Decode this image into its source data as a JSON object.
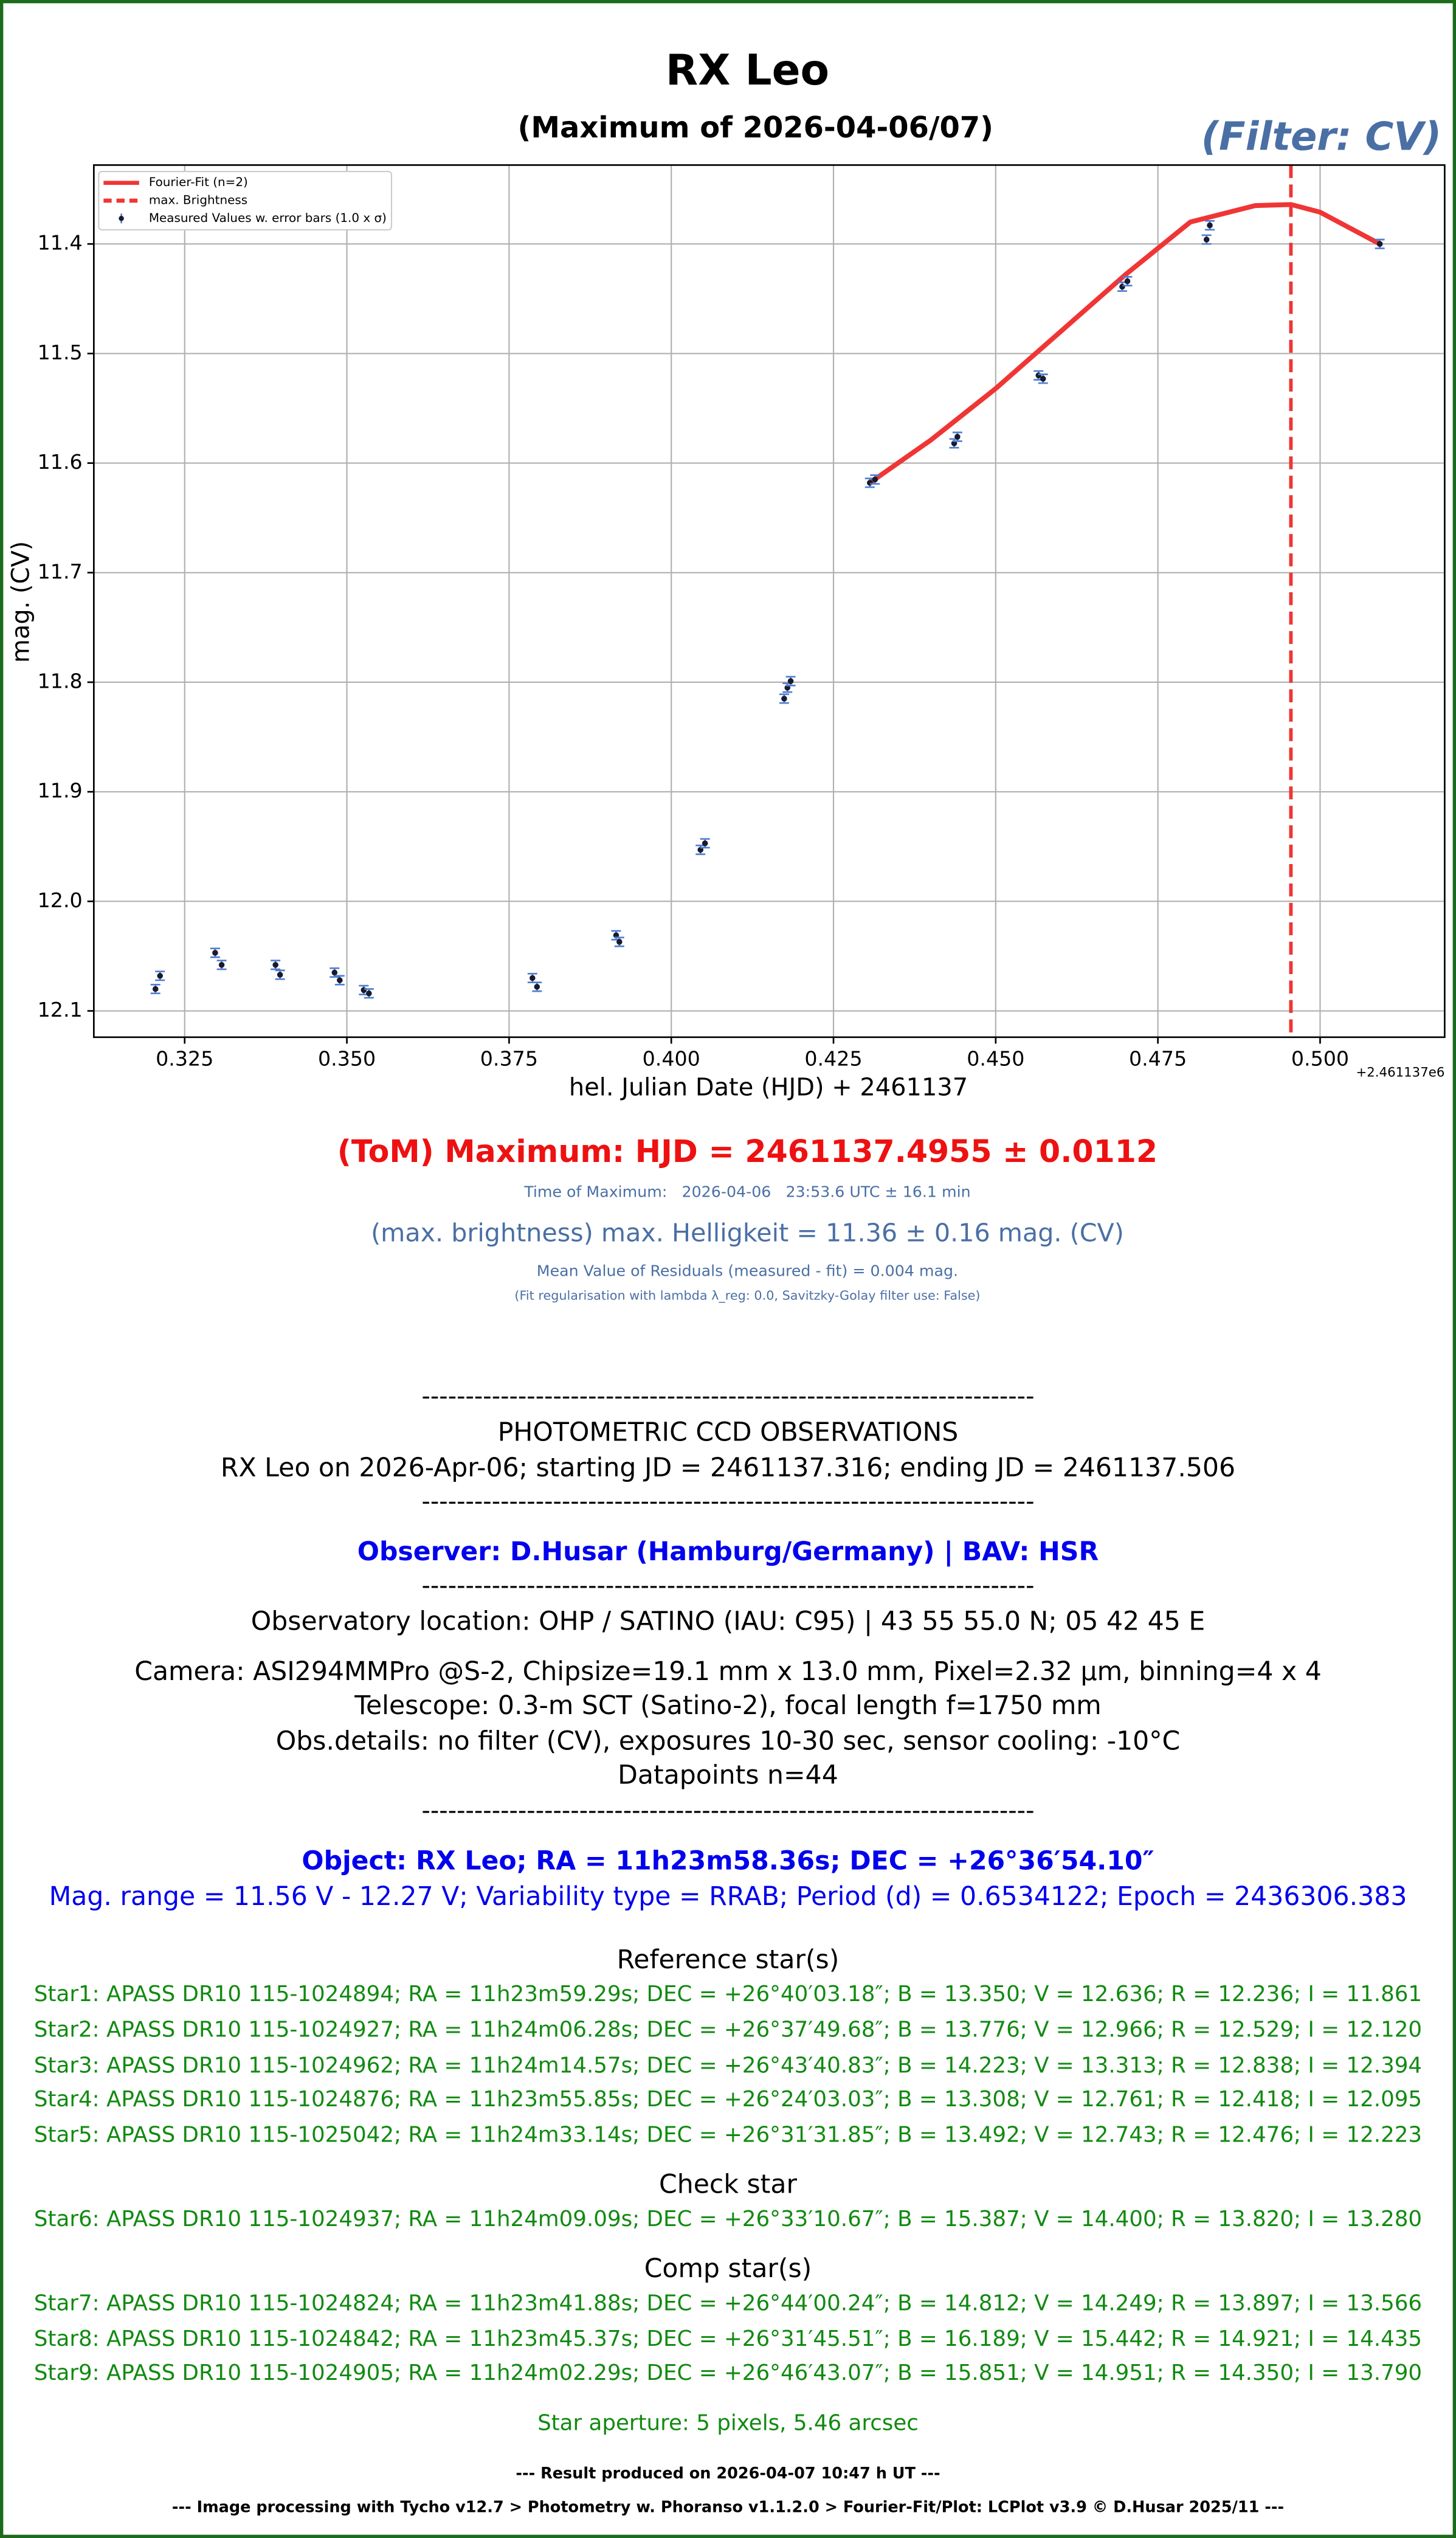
{
  "chart_data": {
    "type": "scatter",
    "title": "RX Leo",
    "subtitle": "(Maximum of 2026-04-06/07)",
    "filter_label": "(Filter: CV)",
    "x_label": "hel. Julian Date (HJD) + 2461137",
    "y_label": "mag. (CV)",
    "x_offset_label": "+2.461137e6",
    "xlim": [
      0.311,
      0.5192
    ],
    "ylim": [
      11.328,
      12.124
    ],
    "y_inverted": true,
    "grid": true,
    "xticks": [
      0.325,
      {
        "value": 0.35,
        "label": "0.350"
      },
      0.375,
      {
        "value": 0.4,
        "label": "0.400"
      },
      0.425,
      {
        "value": 0.45,
        "label": "0.450"
      },
      0.475,
      {
        "value": 0.5,
        "label": "0.500"
      }
    ],
    "yticks": [
      11.4,
      11.5,
      11.6,
      11.7,
      11.8,
      11.9,
      {
        "value": 12.0,
        "label": "12.0"
      },
      12.1
    ],
    "legend": "upper left",
    "series": [
      {
        "name": "Fourier-Fit (n=2)",
        "color": "#f03535",
        "kind": "line",
        "x": [
          0.4306,
          0.44,
          0.45,
          0.46,
          0.47,
          0.48,
          0.49,
          0.4955,
          0.5,
          0.5092
        ],
        "values": [
          11.618,
          11.579,
          11.532,
          11.48,
          11.428,
          11.38,
          11.365,
          11.364,
          11.371,
          11.4
        ]
      },
      {
        "name": "max. Brightness",
        "color": "#f03535",
        "kind": "vline",
        "x": [
          0.4955
        ]
      },
      {
        "name": "Measured Values w. error bars (1.0 x σ)",
        "color": "#1a1a2e",
        "error_color": "#4f7fd0",
        "kind": "points",
        "x": [
          0.3205,
          0.3212,
          0.3297,
          0.3307,
          0.339,
          0.3397,
          0.3481,
          0.3489,
          0.3526,
          0.3534,
          0.3786,
          0.3793,
          0.3915,
          0.392,
          0.4045,
          0.4052,
          0.4174,
          0.4179,
          0.4184,
          0.4306,
          0.4314,
          0.4436,
          0.4441,
          0.4566,
          0.4573,
          0.4695,
          0.4703,
          0.4825,
          0.483,
          0.5092
        ],
        "values": [
          12.08,
          12.068,
          12.047,
          12.058,
          12.058,
          12.067,
          12.065,
          12.072,
          12.081,
          12.084,
          12.07,
          12.078,
          12.031,
          12.037,
          11.953,
          11.947,
          11.815,
          11.805,
          11.799,
          11.618,
          11.615,
          11.582,
          11.576,
          11.52,
          11.523,
          11.439,
          11.434,
          11.396,
          11.383,
          11.4
        ],
        "errors": [
          0.004,
          0.004,
          0.004,
          0.004,
          0.004,
          0.004,
          0.004,
          0.004,
          0.004,
          0.004,
          0.004,
          0.004,
          0.004,
          0.004,
          0.004,
          0.004,
          0.004,
          0.004,
          0.004,
          0.004,
          0.004,
          0.004,
          0.004,
          0.004,
          0.004,
          0.004,
          0.004,
          0.004,
          0.004,
          0.004
        ]
      }
    ]
  },
  "result": {
    "tom": "(ToM) Maximum: HJD = 2461137.4955 ± 0.0112",
    "time": "Time of Maximum:   2026-04-06   23:53.6 UTC ± 16.1 min",
    "brightness": "(max. brightness) max. Helligkeit = 11.36 ± 0.16 mag. (CV)",
    "residuals": "Mean Value of Residuals (measured - fit) = 0.004 mag.",
    "regularisation": "(Fit regularisation with lambda λ_reg: 0.0, Savitzky-Golay filter use: False)"
  },
  "report": {
    "lines": [
      "----------------------------------------------------------------------",
      "PHOTOMETRIC CCD OBSERVATIONS",
      "RX Leo on 2026-Apr-06; starting JD = 2461137.316; ending JD = 2461137.506",
      "----------------------------------------------------------------------",
      "Observer: D.Husar (Hamburg/Germany) | BAV: HSR",
      "----------------------------------------------------------------------",
      "Observatory location: OHP / SATINO (IAU: C95) | 43 55 55.0 N; 05 42 45 E",
      "Camera: ASI294MMPro @S-2, Chipsize=19.1 mm x 13.0 mm, Pixel=2.32 µm, binning=4 x 4",
      "Telescope: 0.3-m SCT (Satino-2), focal length f=1750 mm",
      "Obs.details: no filter (CV), exposures 10-30 sec, sensor cooling: -10°C",
      "Datapoints n=44",
      "----------------------------------------------------------------------",
      "Object: RX Leo; RA = 11h23m58.36s; DEC = +26°36′54.10″",
      "Mag. range = 11.56 V - 12.27 V; Variability type = RRAB; Period (d) = 0.6534122; Epoch = 2436306.383",
      "Reference star(s)",
      "Star1: APASS DR10 115-1024894; RA = 11h23m59.29s; DEC = +26°40′03.18″; B = 13.350; V = 12.636; R = 12.236; I = 11.861",
      "Star2: APASS DR10 115-1024927; RA = 11h24m06.28s; DEC = +26°37′49.68″; B = 13.776; V = 12.966; R = 12.529; I = 12.120",
      "Star3: APASS DR10 115-1024962; RA = 11h24m14.57s; DEC = +26°43′40.83″; B = 14.223; V = 13.313; R = 12.838; I = 12.394",
      "Star4: APASS DR10 115-1024876; RA = 11h23m55.85s; DEC = +26°24′03.03″; B = 13.308; V = 12.761; R = 12.418; I = 12.095",
      "Star5: APASS DR10 115-1025042; RA = 11h24m33.14s; DEC = +26°31′31.85″; B = 13.492; V = 12.743; R = 12.476; I = 12.223",
      "Check star",
      "Star6: APASS DR10 115-1024937; RA = 11h24m09.09s; DEC = +26°33′10.67″; B = 15.387; V = 14.400; R = 13.820; I = 13.280",
      "Comp star(s)",
      "Star7: APASS DR10 115-1024824; RA = 11h23m41.88s; DEC = +26°44′00.24″; B = 14.812; V = 14.249; R = 13.897; I = 13.566",
      "Star8: APASS DR10 115-1024842; RA = 11h23m45.37s; DEC = +26°31′45.51″; B = 16.189; V = 15.442; R = 14.921; I = 14.435",
      "Star9: APASS DR10 115-1024905; RA = 11h24m02.29s; DEC = +26°46′43.07″; B = 15.851; V = 14.951; R = 14.350; I = 13.790",
      "Star aperture: 5 pixels, 5.46 arcsec",
      "--- Result produced on 2026-04-07 10:47 h UT ---",
      "--- Image processing with Tycho v12.7 > Photometry w. Phoranso v1.1.2.0 > Fourier-Fit/Plot: LCPlot v3.9 © D.Husar 2025/11 ---"
    ]
  }
}
